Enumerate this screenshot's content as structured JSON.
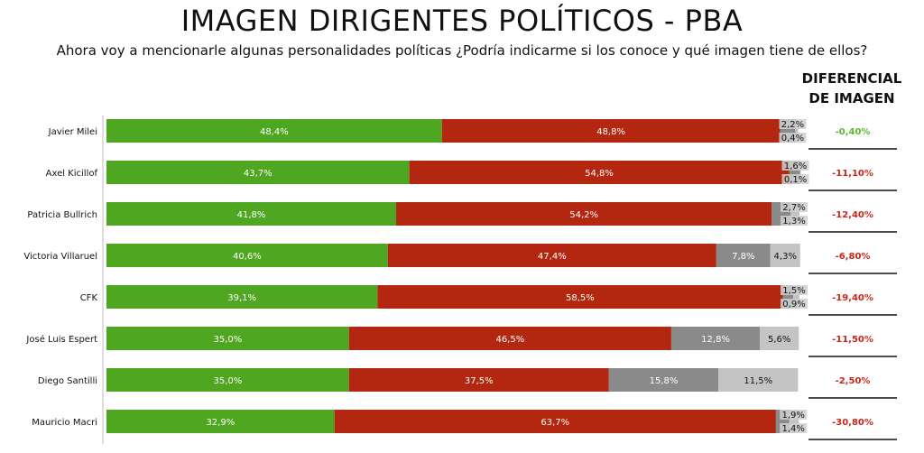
{
  "header": {
    "title": "IMAGEN DIRIGENTES POLÍTICOS - PBA",
    "subtitle": "Ahora voy a mencionarle algunas personalidades políticas ¿Podría indicarme si los conoce y qué imagen tiene de ellos?",
    "diff_header": "DIFERENCIAL DE IMAGEN"
  },
  "colors": {
    "positive": "#4fa620",
    "negative": "#b3260f",
    "regular": "#8a8a8a",
    "unknown": "#c4c4c4",
    "diff_positive": "#5cb82a",
    "diff_negative": "#c8261b"
  },
  "chart_data": {
    "type": "bar",
    "orientation": "horizontal",
    "stacked": true,
    "categories": [
      "Javier Milei",
      "Axel Kicillof",
      "Patricia Bullrich",
      "Victoria Villaruel",
      "CFK",
      "José Luis Espert",
      "Diego Santilli",
      "Mauricio Macri"
    ],
    "series": [
      {
        "values": [
          48.4,
          43.7,
          41.8,
          40.6,
          39.1,
          35.0,
          35.0,
          32.9
        ],
        "labels": [
          "48,4%",
          "43,7%",
          "41,8%",
          "40,6%",
          "39,1%",
          "35,0%",
          "35,0%",
          "32,9%"
        ]
      },
      {
        "values": [
          48.8,
          54.8,
          54.2,
          47.4,
          58.5,
          46.5,
          37.5,
          63.7
        ],
        "labels": [
          "48,8%",
          "54,8%",
          "54,2%",
          "47,4%",
          "58,5%",
          "46,5%",
          "37,5%",
          "63,7%"
        ]
      },
      {
        "values": [
          2.2,
          1.6,
          2.7,
          7.8,
          1.5,
          12.8,
          15.8,
          1.9
        ],
        "labels": [
          "2,2%",
          "1,6%",
          "2,7%",
          "7,8%",
          "1,5%",
          "12,8%",
          "15,8%",
          "1,9%"
        ]
      },
      {
        "values": [
          0.4,
          0.1,
          1.3,
          4.3,
          0.9,
          5.6,
          11.5,
          1.4
        ],
        "labels": [
          "0,4%",
          "0,1%",
          "1,3%",
          "4,3%",
          "0,9%",
          "5,6%",
          "11,5%",
          "1,4%"
        ]
      }
    ],
    "differential": {
      "values": [
        -0.4,
        -11.1,
        -12.4,
        -6.8,
        -19.4,
        -11.5,
        -2.5,
        -30.8
      ],
      "labels": [
        "-0,40%",
        "-11,10%",
        "-12,40%",
        "-6,80%",
        "-19,40%",
        "-11,50%",
        "-2,50%",
        "-30,80%"
      ],
      "colors": [
        "positive",
        "negative",
        "negative",
        "negative",
        "negative",
        "negative",
        "negative",
        "negative"
      ]
    },
    "xlim": [
      0,
      100
    ],
    "grid": false,
    "legend": "none"
  }
}
